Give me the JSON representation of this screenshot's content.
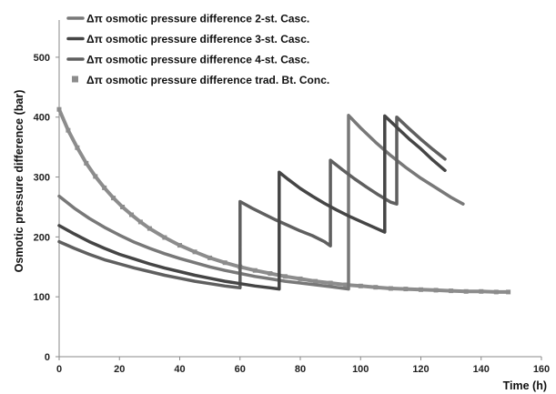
{
  "chart_data": {
    "type": "line",
    "title": "",
    "xlabel": "Time (h)",
    "ylabel": "Osmotic pressure difference (bar)",
    "xlim": [
      0,
      160
    ],
    "ylim": [
      0,
      550
    ],
    "xticks": [
      0,
      20,
      40,
      60,
      80,
      100,
      120,
      140,
      160
    ],
    "yticks": [
      0,
      100,
      200,
      300,
      400,
      500
    ],
    "grid": false,
    "legend_position": "top-left",
    "series": [
      {
        "name": "Δπ osmotic pressure difference 2-st. Casc.",
        "color": "#787878",
        "marker": "line",
        "stroke_width": 3.5,
        "x": [
          0,
          5,
          10,
          15,
          20,
          25,
          30,
          35,
          40,
          45,
          50,
          55,
          60,
          65,
          70,
          75,
          80,
          85,
          90,
          96,
          96,
          100,
          105,
          110,
          115,
          120,
          125,
          130,
          134
        ],
        "y": [
          268,
          248,
          231,
          216,
          203,
          191,
          181,
          172,
          164,
          157,
          150,
          144,
          139,
          134,
          130,
          126,
          123,
          120,
          117,
          113,
          403,
          382,
          358,
          336,
          316,
          298,
          282,
          266,
          255
        ]
      },
      {
        "name": "Δπ osmotic pressure difference 3-st. Casc.",
        "color": "#454545",
        "marker": "line",
        "stroke_width": 3.5,
        "x": [
          0,
          5,
          10,
          15,
          20,
          25,
          30,
          35,
          40,
          45,
          50,
          55,
          60,
          65,
          70,
          73,
          73,
          76,
          80,
          84,
          88,
          92,
          96,
          100,
          104,
          108,
          108,
          112,
          116,
          120,
          124,
          128
        ],
        "y": [
          219,
          205,
          192,
          181,
          171,
          163,
          155,
          148,
          142,
          136,
          131,
          126,
          122,
          118,
          115,
          113,
          308,
          296,
          281,
          268,
          256,
          245,
          235,
          226,
          217,
          208,
          402,
          383,
          364,
          347,
          328,
          311
        ]
      },
      {
        "name": "Δπ osmotic pressure difference 4-st. Casc.",
        "color": "#5f5f5f",
        "marker": "line",
        "stroke_width": 3.5,
        "x": [
          0,
          5,
          10,
          15,
          20,
          25,
          30,
          35,
          40,
          45,
          50,
          55,
          60,
          60,
          64,
          68,
          72,
          76,
          80,
          84,
          88,
          90,
          90,
          94,
          98,
          102,
          106,
          110,
          112,
          112,
          116,
          120,
          124,
          128
        ],
        "y": [
          192,
          181,
          171,
          162,
          155,
          148,
          142,
          136,
          131,
          126,
          122,
          118,
          115,
          259,
          248,
          238,
          228,
          219,
          210,
          202,
          192,
          185,
          328,
          312,
          297,
          283,
          270,
          258,
          255,
          400,
          381,
          363,
          346,
          330
        ]
      },
      {
        "name": "Δπ osmotic pressure difference trad. Bt. Conc.",
        "color": "#8c8c8c",
        "marker": "square",
        "stroke_width": 4,
        "x": [
          0,
          3,
          6,
          9,
          12,
          15,
          18,
          21,
          24,
          27,
          30,
          35,
          40,
          45,
          50,
          55,
          60,
          65,
          70,
          75,
          80,
          85,
          90,
          95,
          100,
          105,
          110,
          115,
          120,
          125,
          130,
          135,
          140,
          145,
          149
        ],
        "y": [
          413,
          378,
          349,
          323,
          301,
          282,
          265,
          250,
          237,
          225,
          214,
          199,
          186,
          175,
          165,
          157,
          150,
          144,
          139,
          134,
          130,
          126,
          123,
          120,
          118,
          116,
          114,
          113,
          112,
          111,
          110,
          109,
          109,
          108,
          108
        ]
      }
    ]
  }
}
